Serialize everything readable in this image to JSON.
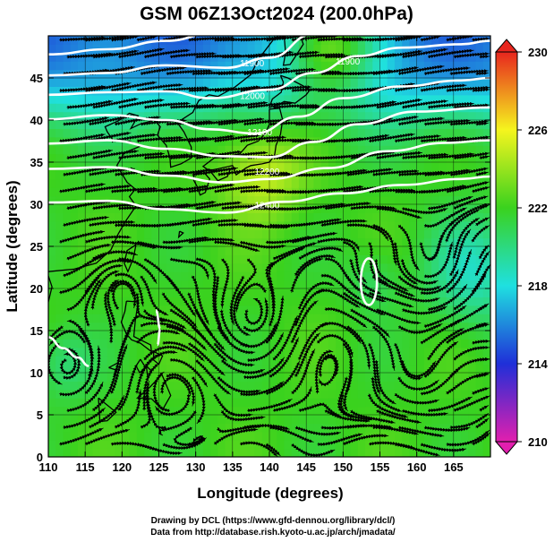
{
  "chart_data": {
    "type": "heatmap",
    "title": "GSM 06Z13Oct2024 (200.0hPa)",
    "xlabel": "Longitude (degrees)",
    "ylabel": "Latitude  (degrees)",
    "xlim": [
      110,
      170
    ],
    "ylim": [
      0,
      50
    ],
    "x_ticks": [
      110,
      115,
      120,
      125,
      130,
      135,
      140,
      145,
      150,
      155,
      160,
      165
    ],
    "y_ticks": [
      0,
      5,
      10,
      15,
      20,
      25,
      30,
      35,
      40,
      45
    ],
    "colorbar": {
      "ticks": [
        210,
        214,
        218,
        222,
        226,
        230
      ],
      "min": 210,
      "max": 230,
      "colors": [
        "#e21fae",
        "#1f2fd8",
        "#1fe0e0",
        "#3ad21e",
        "#f5f51e",
        "#e8261e"
      ]
    },
    "contour_labels": [
      {
        "text": "11900",
        "lon": 136,
        "lat": 46.4
      },
      {
        "text": "12000",
        "lon": 136,
        "lat": 42.5
      },
      {
        "text": "12100",
        "lon": 137,
        "lat": 38.2
      },
      {
        "text": "12200",
        "lon": 138,
        "lat": 33.5
      },
      {
        "text": "12400",
        "lon": 138,
        "lat": 29.5
      },
      {
        "text": "11900",
        "lon": 149,
        "lat": 46.6
      }
    ],
    "footer": [
      "Drawing by DCL (https://www.gfd-dennou.org/library/dcl/)",
      "Data from http://database.rish.kyoto-u.ac.jp/arch/jmadata/"
    ]
  }
}
